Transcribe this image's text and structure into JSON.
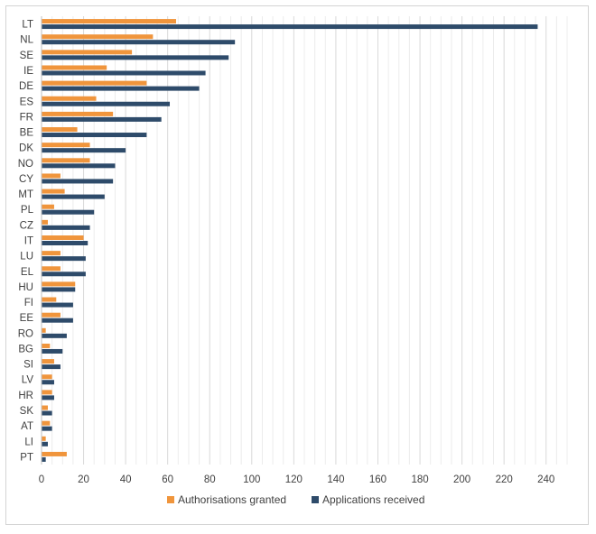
{
  "chart_data": {
    "type": "bar",
    "orientation": "horizontal",
    "categories": [
      "LT",
      "NL",
      "SE",
      "IE",
      "DE",
      "ES",
      "FR",
      "BE",
      "DK",
      "NO",
      "CY",
      "MT",
      "PL",
      "CZ",
      "IT",
      "LU",
      "EL",
      "HU",
      "FI",
      "EE",
      "RO",
      "BG",
      "SI",
      "LV",
      "HR",
      "SK",
      "AT",
      "LI",
      "PT"
    ],
    "series": [
      {
        "name": "Authorisations granted",
        "color": "#f0953c",
        "values": [
          64,
          53,
          43,
          31,
          50,
          26,
          34,
          17,
          23,
          23,
          9,
          11,
          6,
          3,
          20,
          9,
          9,
          16,
          7,
          9,
          2,
          4,
          6,
          5,
          5,
          3,
          4,
          2,
          12
        ]
      },
      {
        "name": "Applications received",
        "color": "#2e4b6a",
        "values": [
          236,
          92,
          89,
          78,
          75,
          61,
          57,
          50,
          40,
          35,
          34,
          30,
          25,
          23,
          22,
          21,
          21,
          16,
          15,
          15,
          12,
          10,
          9,
          6,
          6,
          5,
          5,
          3,
          2
        ]
      }
    ],
    "xlim": [
      0,
      250
    ],
    "xticks": [
      "0",
      "20",
      "40",
      "60",
      "80",
      "100",
      "120",
      "140",
      "160",
      "180",
      "200",
      "220",
      "240"
    ],
    "minor_grid_step": 5,
    "grid": true,
    "legend": "bottom",
    "title": "",
    "xlabel": "",
    "ylabel": ""
  }
}
